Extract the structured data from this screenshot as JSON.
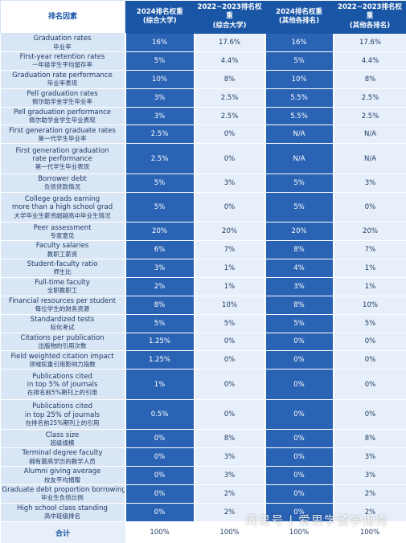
{
  "headers": {
    "factor": "排名因素",
    "col1": "2024排名权重",
    "col1_sub": "(综合大学)",
    "col2": "2022~2023排名权重",
    "col2_sub": "(综合大学)",
    "col3": "2024排名权重",
    "col3_sub": "(其他各排名)",
    "col4": "2022~2023排名权重",
    "col4_sub": "(其他各排名)"
  },
  "rows": [
    {
      "en": [
        "Graduation rates"
      ],
      "cn": "毕业率",
      "v": [
        "16%",
        "17.6%",
        "16%",
        "17.6%"
      ]
    },
    {
      "en": [
        "First-year retention rates"
      ],
      "cn": "一年级学生平均留存率",
      "v": [
        "5%",
        "4.4%",
        "5%",
        "4.4%"
      ]
    },
    {
      "en": [
        "Graduation rate performance"
      ],
      "cn": "毕业率表现",
      "v": [
        "10%",
        "8%",
        "10%",
        "8%"
      ]
    },
    {
      "en": [
        "Pell graduation rates"
      ],
      "cn": "佩尔助学金学生毕业率",
      "v": [
        "3%",
        "2.5%",
        "5.5%",
        "2.5%"
      ]
    },
    {
      "en": [
        "Pell graduation performance"
      ],
      "cn": "佩尔助学金学生毕业表现",
      "v": [
        "3%",
        "2.5%",
        "5.5%",
        "2.5%"
      ]
    },
    {
      "en": [
        "First generation graduate rates"
      ],
      "cn": "第一代学生毕业率",
      "v": [
        "2.5%",
        "0%",
        "N/A",
        "N/A"
      ]
    },
    {
      "en": [
        "First generation graduation",
        "rate performance"
      ],
      "cn": "第一代学生毕业表现",
      "v": [
        "2.5%",
        "0%",
        "N/A",
        "N/A"
      ]
    },
    {
      "en": [
        "Borrower debt"
      ],
      "cn": "负债贷款情况",
      "v": [
        "5%",
        "3%",
        "5%",
        "3%"
      ]
    },
    {
      "en": [
        "College grads earning",
        "more than a high school grad"
      ],
      "cn": "大学毕业生薪资超越高中毕业生情况",
      "v": [
        "5%",
        "0%",
        "5%",
        "0%"
      ]
    },
    {
      "en": [
        "Peer assessment"
      ],
      "cn": "专家意见",
      "v": [
        "20%",
        "20%",
        "20%",
        "20%"
      ]
    },
    {
      "en": [
        "Faculty salaries"
      ],
      "cn": "教职工薪资",
      "v": [
        "6%",
        "7%",
        "8%",
        "7%"
      ]
    },
    {
      "en": [
        "Student-faculty ratio"
      ],
      "cn": "师生比",
      "v": [
        "3%",
        "1%",
        "4%",
        "1%"
      ]
    },
    {
      "en": [
        "Full-time faculty"
      ],
      "cn": "全职教职工",
      "v": [
        "2%",
        "1%",
        "3%",
        "1%"
      ]
    },
    {
      "en": [
        "Financial resources per student"
      ],
      "cn": "每位学生的财务资源",
      "v": [
        "8%",
        "10%",
        "8%",
        "10%"
      ]
    },
    {
      "en": [
        "Standardized tests"
      ],
      "cn": "标化考试",
      "v": [
        "5%",
        "5%",
        "5%",
        "5%"
      ]
    },
    {
      "en": [
        "Citations per publication"
      ],
      "cn": "出版物的引用次数",
      "v": [
        "1.25%",
        "0%",
        "0%",
        "0%"
      ]
    },
    {
      "en": [
        "Field weighted citation impact"
      ],
      "cn": "领域权重引用影响力指数",
      "v": [
        "1.25%",
        "0%",
        "0%",
        "0%"
      ]
    },
    {
      "en": [
        "Publications cited",
        "in top 5% of journals"
      ],
      "cn": "在排名前5%期刊上的引用",
      "v": [
        "1%",
        "0%",
        "0%",
        "0%"
      ]
    },
    {
      "en": [
        "Publications cited",
        "in top 25% of journals"
      ],
      "cn": "在排名前25%期刊上的引用",
      "v": [
        "0.5%",
        "0%",
        "0%",
        "0%"
      ]
    },
    {
      "en": [
        "Class size"
      ],
      "cn": "班级规模",
      "v": [
        "0%",
        "8%",
        "0%",
        "8%"
      ]
    },
    {
      "en": [
        "Terminal degree faculty"
      ],
      "cn": "拥有最高学历的教学人员",
      "v": [
        "0%",
        "3%",
        "0%",
        "3%"
      ]
    },
    {
      "en": [
        "Alumni giving average"
      ],
      "cn": "校友平均捐赠",
      "v": [
        "0%",
        "3%",
        "0%",
        "3%"
      ]
    },
    {
      "en": [
        "Graduate debt proportion borrowing"
      ],
      "cn": "毕业生负债比例",
      "v": [
        "0%",
        "2%",
        "0%",
        "2%"
      ]
    },
    {
      "en": [
        "High school class standing"
      ],
      "cn": "高中班级排名",
      "v": [
        "0%",
        "2%",
        "0%",
        "2%"
      ]
    }
  ],
  "total": {
    "label": "合计",
    "v": [
      "100%",
      "100%",
      "100%",
      "100%"
    ]
  },
  "watermark": "网易号 | 爱思学留学指南",
  "colors": {
    "header_blue": "#1a56a6",
    "dark_cell": "#2a63b4",
    "light_cell": "#e7effa",
    "factor_cell": "#d9e6f5"
  }
}
